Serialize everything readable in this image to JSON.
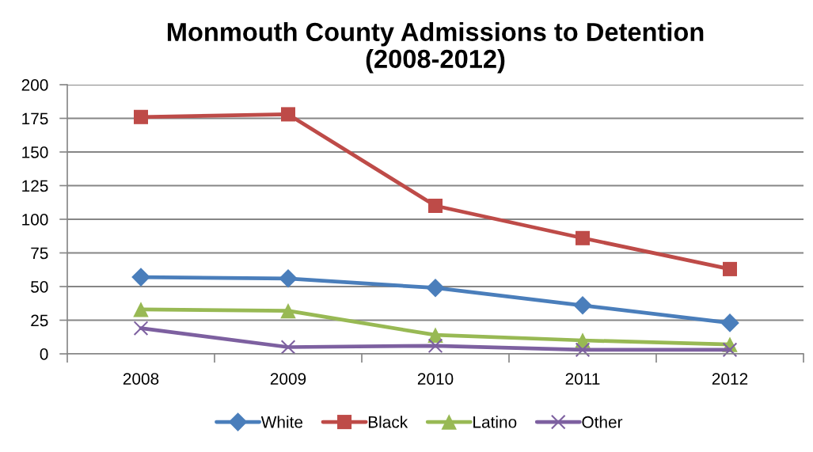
{
  "chart_data": {
    "type": "line",
    "title": "Monmouth County Admissions to Detention\n(2008-2012)",
    "categories": [
      "2008",
      "2009",
      "2010",
      "2011",
      "2012"
    ],
    "series": [
      {
        "name": "White",
        "color": "#4a7ebb",
        "marker": "diamond",
        "values": [
          57,
          56,
          49,
          36,
          23
        ]
      },
      {
        "name": "Black",
        "color": "#be4b48",
        "marker": "square",
        "values": [
          176,
          178,
          110,
          86,
          63
        ]
      },
      {
        "name": "Latino",
        "color": "#98b954",
        "marker": "triangle",
        "values": [
          33,
          32,
          14,
          10,
          7
        ]
      },
      {
        "name": "Other",
        "color": "#7d60a0",
        "marker": "cross",
        "values": [
          19,
          5,
          6,
          3,
          3
        ]
      }
    ],
    "ylim": [
      0,
      200
    ],
    "yticks": [
      0,
      25,
      50,
      75,
      100,
      125,
      150,
      175,
      200
    ],
    "grid": "y",
    "legend": "bottom",
    "line_style": "solid"
  }
}
